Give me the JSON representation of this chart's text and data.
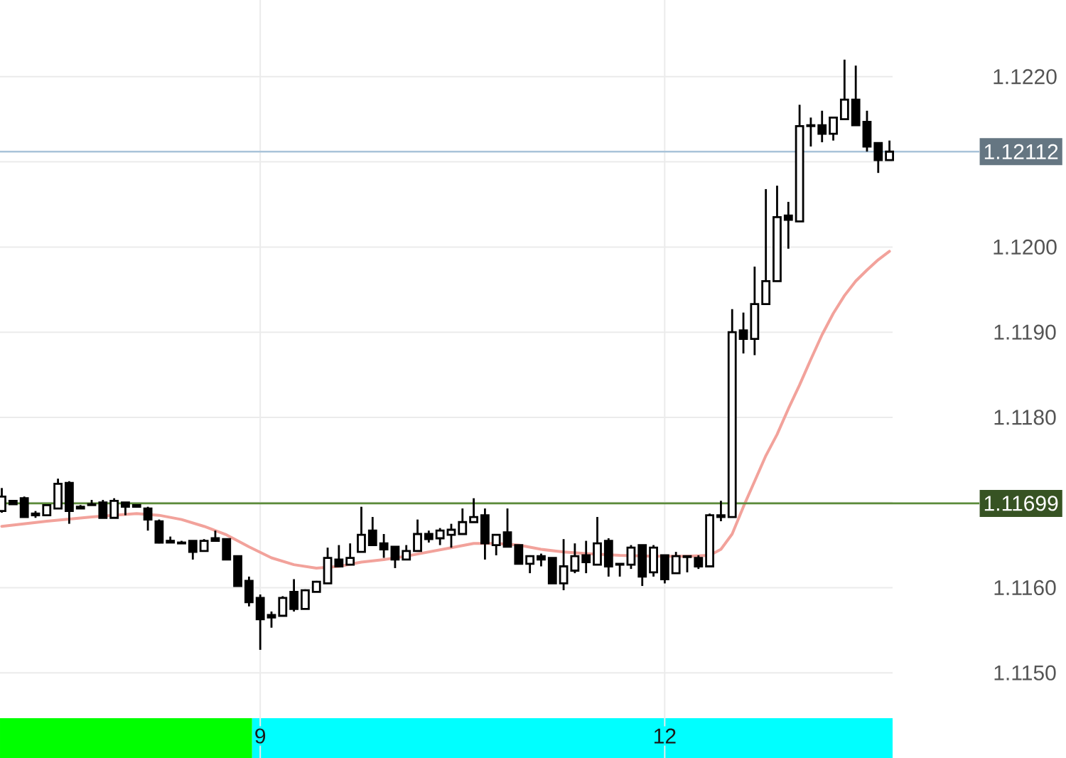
{
  "chart_data": {
    "type": "candlestick",
    "x": [
      7.0833,
      7.1667,
      7.25,
      7.3333,
      7.4167,
      7.5,
      7.5833,
      7.6667,
      7.75,
      7.8333,
      7.9167,
      8,
      8.0833,
      8.1667,
      8.25,
      8.3333,
      8.4167,
      8.5,
      8.5833,
      8.6667,
      8.75,
      8.8333,
      8.9167,
      9,
      9.0833,
      9.1667,
      9.25,
      9.3333,
      9.4167,
      9.5,
      9.5833,
      9.6667,
      9.75,
      9.8333,
      9.9167,
      10,
      10.0833,
      10.1667,
      10.25,
      10.3333,
      10.4167,
      10.5,
      10.5833,
      10.6667,
      10.75,
      10.8333,
      10.9167,
      11,
      11.0833,
      11.1667,
      11.25,
      11.3333,
      11.4167,
      11.5,
      11.5833,
      11.6667,
      11.75,
      11.8333,
      11.9167,
      12,
      12.0833,
      12.1667,
      12.25,
      12.3333,
      12.4167,
      12.5,
      12.5833,
      12.6667,
      12.75,
      12.8333,
      12.9167,
      13,
      13.0833,
      13.1667,
      13.25,
      13.3333,
      13.4167,
      13.5,
      13.5833,
      13.6667
    ],
    "ohlc": [
      [
        1.1169,
        1.11717,
        1.11688,
        1.11707
      ],
      [
        1.11702,
        1.11703,
        1.11698,
        1.11698
      ],
      [
        1.11705,
        1.11707,
        1.11683,
        1.11683
      ],
      [
        1.11687,
        1.1169,
        1.11682,
        1.11685
      ],
      [
        1.11685,
        1.11698,
        1.11685,
        1.11697
      ],
      [
        1.11693,
        1.11728,
        1.11693,
        1.11722
      ],
      [
        1.11723,
        1.11725,
        1.11675,
        1.1169
      ],
      [
        1.11695,
        1.11697,
        1.11693,
        1.11693
      ],
      [
        1.11698,
        1.11703,
        1.11697,
        1.11697
      ],
      [
        1.117,
        1.11703,
        1.11682,
        1.11682
      ],
      [
        1.11682,
        1.11705,
        1.11682,
        1.11702
      ],
      [
        1.117,
        1.117,
        1.11685,
        1.11695
      ],
      [
        1.11697,
        1.11698,
        1.11695,
        1.11695
      ],
      [
        1.11693,
        1.11695,
        1.11667,
        1.1168
      ],
      [
        1.11678,
        1.1168,
        1.11652,
        1.11653
      ],
      [
        1.11655,
        1.1166,
        1.11653,
        1.11653
      ],
      [
        1.11653,
        1.11655,
        1.11652,
        1.11652
      ],
      [
        1.11655,
        1.11655,
        1.11633,
        1.11642
      ],
      [
        1.11643,
        1.11657,
        1.11643,
        1.11655
      ],
      [
        1.11658,
        1.11667,
        1.11655,
        1.11655
      ],
      [
        1.11657,
        1.11657,
        1.11633,
        1.11633
      ],
      [
        1.11637,
        1.11637,
        1.11602,
        1.11602
      ],
      [
        1.11608,
        1.11613,
        1.11578,
        1.11583
      ],
      [
        1.11588,
        1.11592,
        1.11527,
        1.11563
      ],
      [
        1.11568,
        1.11572,
        1.11553,
        1.11565
      ],
      [
        1.11567,
        1.1159,
        1.11567,
        1.11588
      ],
      [
        1.11595,
        1.1161,
        1.11572,
        1.11575
      ],
      [
        1.11575,
        1.11598,
        1.11575,
        1.11597
      ],
      [
        1.11595,
        1.11608,
        1.11595,
        1.11607
      ],
      [
        1.11605,
        1.11647,
        1.11605,
        1.11635
      ],
      [
        1.11633,
        1.1165,
        1.11625,
        1.11625
      ],
      [
        1.11627,
        1.11652,
        1.11627,
        1.11635
      ],
      [
        1.11642,
        1.11695,
        1.11642,
        1.11662
      ],
      [
        1.11667,
        1.11683,
        1.1165,
        1.1165
      ],
      [
        1.11652,
        1.11663,
        1.11635,
        1.11645
      ],
      [
        1.11648,
        1.11648,
        1.11623,
        1.11633
      ],
      [
        1.11633,
        1.1165,
        1.11633,
        1.11643
      ],
      [
        1.11643,
        1.1168,
        1.11643,
        1.11663
      ],
      [
        1.11663,
        1.11667,
        1.11653,
        1.11657
      ],
      [
        1.11658,
        1.1167,
        1.1165,
        1.11667
      ],
      [
        1.11662,
        1.11675,
        1.11647,
        1.11668
      ],
      [
        1.11663,
        1.11693,
        1.11663,
        1.11677
      ],
      [
        1.11677,
        1.11705,
        1.11677,
        1.11683
      ],
      [
        1.11685,
        1.11693,
        1.11633,
        1.11652
      ],
      [
        1.1165,
        1.11663,
        1.11638,
        1.11662
      ],
      [
        1.11665,
        1.11693,
        1.11648,
        1.11648
      ],
      [
        1.1165,
        1.1165,
        1.11628,
        1.11628
      ],
      [
        1.11628,
        1.11638,
        1.11617,
        1.11637
      ],
      [
        1.11637,
        1.1164,
        1.11625,
        1.11633
      ],
      [
        1.11635,
        1.11635,
        1.11605,
        1.11605
      ],
      [
        1.11605,
        1.11657,
        1.11597,
        1.11625
      ],
      [
        1.1162,
        1.11652,
        1.11617,
        1.11637
      ],
      [
        1.11638,
        1.11655,
        1.11617,
        1.1163
      ],
      [
        1.11627,
        1.11683,
        1.11627,
        1.11652
      ],
      [
        1.11655,
        1.11658,
        1.11613,
        1.11625
      ],
      [
        1.11628,
        1.11628,
        1.11613,
        1.11627
      ],
      [
        1.11627,
        1.1165,
        1.11622,
        1.11647
      ],
      [
        1.1165,
        1.1165,
        1.11602,
        1.11613
      ],
      [
        1.11618,
        1.1165,
        1.11613,
        1.11647
      ],
      [
        1.11638,
        1.11638,
        1.11605,
        1.1161
      ],
      [
        1.11617,
        1.11642,
        1.11617,
        1.11637
      ],
      [
        1.11637,
        1.11637,
        1.11618,
        1.11636
      ],
      [
        1.11635,
        1.11638,
        1.11622,
        1.11625
      ],
      [
        1.11625,
        1.11687,
        1.11625,
        1.11685
      ],
      [
        1.11685,
        1.11702,
        1.11678,
        1.11683
      ],
      [
        1.11683,
        1.11927,
        1.11683,
        1.119
      ],
      [
        1.11902,
        1.11923,
        1.11875,
        1.11892
      ],
      [
        1.11892,
        1.11977,
        1.11873,
        1.11933
      ],
      [
        1.11933,
        1.12068,
        1.11933,
        1.1196
      ],
      [
        1.1196,
        1.12072,
        1.1196,
        1.12035
      ],
      [
        1.12037,
        1.12053,
        1.11998,
        1.12032
      ],
      [
        1.1203,
        1.12167,
        1.1203,
        1.12142
      ],
      [
        1.12143,
        1.12152,
        1.12118,
        1.12142
      ],
      [
        1.12143,
        1.1216,
        1.12123,
        1.12133
      ],
      [
        1.12133,
        1.12152,
        1.12125,
        1.12152
      ],
      [
        1.1215,
        1.1222,
        1.1215,
        1.12173
      ],
      [
        1.12173,
        1.12213,
        1.12143,
        1.12143
      ],
      [
        1.12147,
        1.1216,
        1.12112,
        1.12118
      ],
      [
        1.12122,
        1.12122,
        1.12087,
        1.12102
      ],
      [
        1.12102,
        1.12125,
        1.12102,
        1.12112
      ]
    ],
    "series": [
      {
        "type": "line",
        "color": "#f2a29b",
        "x": [
          7.0833,
          7.4167,
          7.75,
          8.0833,
          8.25,
          8.4167,
          8.5833,
          8.75,
          8.9167,
          9.0833,
          9.25,
          9.4167,
          9.5833,
          9.75,
          9.9167,
          10.0833,
          10.25,
          10.4167,
          10.5833,
          10.75,
          10.9167,
          11.0833,
          11.25,
          11.4167,
          11.6667,
          11.9167,
          12.1667,
          12.3333,
          12.4167,
          12.5,
          12.5833,
          12.6667,
          12.75,
          12.8333,
          12.9167,
          13,
          13.0833,
          13.1667,
          13.25,
          13.3333,
          13.4167,
          13.5,
          13.5833,
          13.6667
        ],
        "values": [
          1.11672,
          1.11678,
          1.11683,
          1.11687,
          1.11685,
          1.1168,
          1.11672,
          1.11662,
          1.11648,
          1.11635,
          1.11627,
          1.11623,
          1.11625,
          1.1163,
          1.11633,
          1.11637,
          1.11642,
          1.11647,
          1.11652,
          1.11652,
          1.1165,
          1.11645,
          1.11642,
          1.1164,
          1.11638,
          1.11637,
          1.11637,
          1.11638,
          1.11645,
          1.11663,
          1.11695,
          1.11725,
          1.11755,
          1.1178,
          1.1181,
          1.11838,
          1.11868,
          1.11897,
          1.11922,
          1.11943,
          1.1196,
          1.11973,
          1.11985,
          1.11995
        ]
      }
    ],
    "xlim": [
      7.07,
      13.69
    ],
    "xticks": [
      9,
      12
    ],
    "ylim": [
      1.114,
      1.1229
    ],
    "yticks": [
      {
        "value": 1.115,
        "label": "1.1150"
      },
      {
        "value": 1.116,
        "label": "1.1160"
      },
      {
        "value": 1.117,
        "label": null
      },
      {
        "value": 1.118,
        "label": "1.1180"
      },
      {
        "value": 1.119,
        "label": "1.1190"
      },
      {
        "value": 1.12,
        "label": "1.1200"
      },
      {
        "value": 1.121,
        "label": null
      },
      {
        "value": 1.122,
        "label": "1.1220"
      }
    ],
    "ref_lines": [
      {
        "axis": "y",
        "value": 1.12112,
        "label": "1.12112",
        "color": "#a9c4d9"
      },
      {
        "axis": "y",
        "value": 1.11699,
        "label": "1.11699",
        "color": "#5b8b3a"
      }
    ],
    "bands": [
      {
        "axis": "x",
        "from": 7.07,
        "to": 8.94,
        "color": "#00ff00"
      },
      {
        "axis": "x",
        "from": 8.94,
        "to": 13.69,
        "color": "#00ffff"
      }
    ],
    "grid": true
  }
}
